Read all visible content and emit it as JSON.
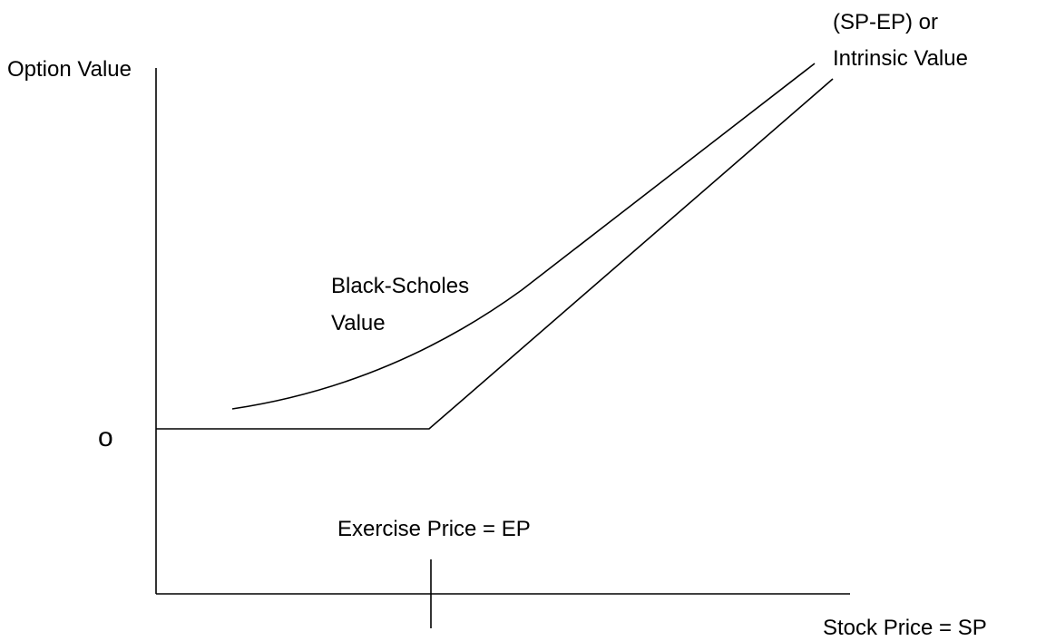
{
  "axes": {
    "y_label": "Option Value",
    "x_label": "Stock Price = SP",
    "origin": "o"
  },
  "labels": {
    "intrinsic": [
      "(SP-EP) or",
      "Intrinsic Value"
    ],
    "black_scholes": [
      "Black-Scholes",
      "Value"
    ],
    "exercise": "Exercise Price = EP"
  }
}
